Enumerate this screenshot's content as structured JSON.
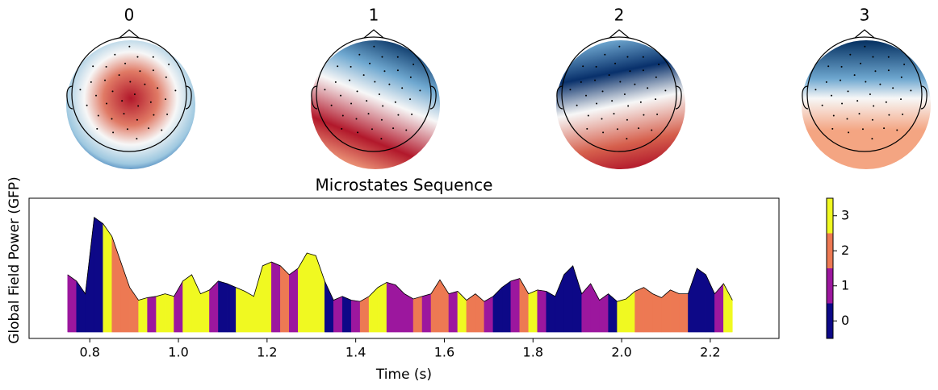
{
  "chart_data": [
    {
      "type": "topomap",
      "titles": [
        "0",
        "1",
        "2",
        "3"
      ]
    },
    {
      "type": "microstate-area",
      "title": "Microstates Sequence",
      "xlabel": "Time (s)",
      "ylabel": "Global Field Power (GFP)",
      "x": [
        0.75,
        0.77,
        0.79,
        0.81,
        0.83,
        0.85,
        0.87,
        0.89,
        0.91,
        0.93,
        0.95,
        0.97,
        0.99,
        1.01,
        1.03,
        1.05,
        1.07,
        1.09,
        1.11,
        1.13,
        1.15,
        1.17,
        1.19,
        1.21,
        1.23,
        1.25,
        1.27,
        1.29,
        1.31,
        1.33,
        1.35,
        1.37,
        1.39,
        1.41,
        1.43,
        1.45,
        1.47,
        1.49,
        1.51,
        1.53,
        1.55,
        1.57,
        1.59,
        1.61,
        1.63,
        1.65,
        1.67,
        1.69,
        1.71,
        1.73,
        1.75,
        1.77,
        1.79,
        1.81,
        1.83,
        1.85,
        1.87,
        1.89,
        1.91,
        1.93,
        1.95,
        1.97,
        1.99,
        2.01,
        2.03,
        2.05,
        2.07,
        2.09,
        2.11,
        2.13,
        2.15,
        2.17,
        2.19,
        2.21,
        2.23,
        2.25
      ],
      "values": [
        0.45,
        0.4,
        0.3,
        0.9,
        0.85,
        0.75,
        0.55,
        0.35,
        0.25,
        0.27,
        0.28,
        0.3,
        0.28,
        0.4,
        0.45,
        0.3,
        0.33,
        0.4,
        0.38,
        0.35,
        0.32,
        0.28,
        0.52,
        0.55,
        0.52,
        0.45,
        0.5,
        0.62,
        0.6,
        0.4,
        0.25,
        0.28,
        0.25,
        0.24,
        0.28,
        0.35,
        0.39,
        0.37,
        0.3,
        0.26,
        0.28,
        0.3,
        0.41,
        0.3,
        0.32,
        0.25,
        0.3,
        0.24,
        0.28,
        0.35,
        0.4,
        0.42,
        0.3,
        0.33,
        0.32,
        0.28,
        0.45,
        0.52,
        0.3,
        0.38,
        0.25,
        0.3,
        0.24,
        0.26,
        0.32,
        0.35,
        0.3,
        0.27,
        0.33,
        0.3,
        0.3,
        0.5,
        0.45,
        0.3,
        0.38,
        0.25
      ],
      "states": [
        1,
        0,
        0,
        0,
        3,
        2,
        2,
        2,
        3,
        1,
        3,
        3,
        1,
        3,
        3,
        3,
        1,
        0,
        0,
        3,
        3,
        3,
        3,
        1,
        2,
        1,
        3,
        3,
        3,
        0,
        1,
        0,
        1,
        2,
        3,
        3,
        1,
        1,
        1,
        2,
        1,
        2,
        2,
        1,
        3,
        2,
        2,
        1,
        0,
        0,
        1,
        2,
        3,
        1,
        0,
        0,
        0,
        0,
        1,
        1,
        1,
        0,
        3,
        3,
        2,
        2,
        2,
        2,
        2,
        2,
        0,
        0,
        0,
        1,
        3,
        1
      ],
      "xlim": [
        0.663,
        2.355
      ],
      "ylim": [
        -0.05,
        1.05
      ],
      "xticks": [
        0.8,
        {
          "value": 1.0,
          "label": "1.0"
        },
        1.2,
        1.4,
        1.6,
        1.8,
        {
          "value": 2.0,
          "label": "2.0"
        },
        2.2
      ],
      "colorbar": {
        "lim": [
          -0.5,
          3.5
        ],
        "ticks": [
          0,
          1,
          2,
          3
        ],
        "colors": [
          "#0d0887",
          "#9c179e",
          "#ed7953",
          "#f0f921"
        ]
      }
    }
  ]
}
